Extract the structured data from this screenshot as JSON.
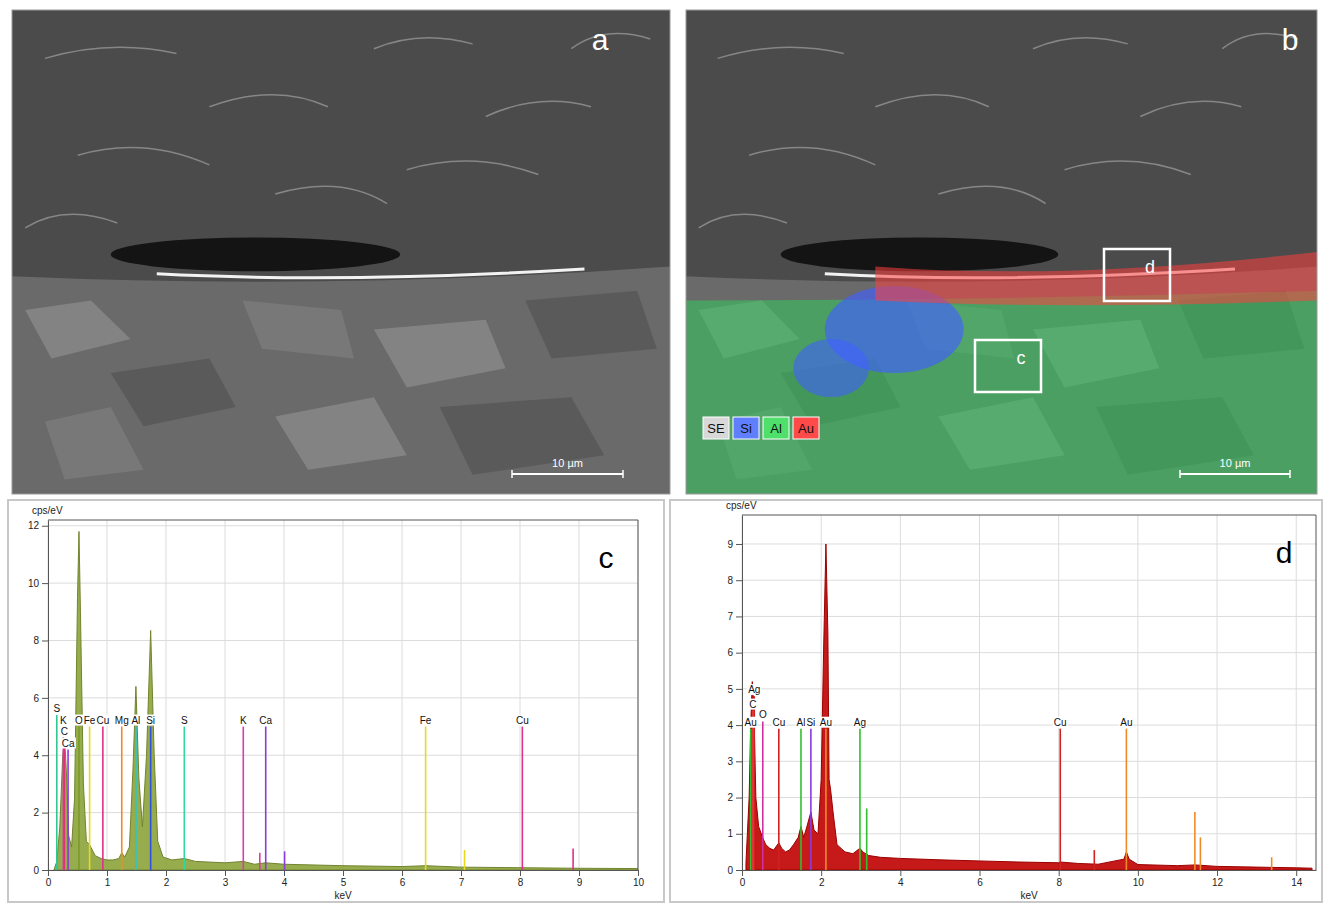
{
  "images": [
    {
      "panel_label": "a",
      "scale_bar": "10 µm"
    },
    {
      "panel_label": "b",
      "scale_bar": "10 µm",
      "map_channels": [
        "SE",
        "Si",
        "Al",
        "Au"
      ],
      "regions": [
        "d",
        "c"
      ]
    }
  ],
  "chart_data": [
    {
      "type": "area",
      "panel_label": "c",
      "x_label": "keV",
      "y_label": "cps/eV",
      "x": [
        0.1,
        0.15,
        0.2,
        0.25,
        0.28,
        0.31,
        0.35,
        0.4,
        0.45,
        0.5,
        0.525,
        0.55,
        0.6,
        0.65,
        0.7,
        0.75,
        0.8,
        0.9,
        1.0,
        1.1,
        1.2,
        1.25,
        1.3,
        1.38,
        1.44,
        1.49,
        1.54,
        1.6,
        1.67,
        1.74,
        1.8,
        1.86,
        1.95,
        2.1,
        2.31,
        2.5,
        3.0,
        3.31,
        3.5,
        3.69,
        4.0,
        5.0,
        6.0,
        6.4,
        7.0,
        8.0,
        9.0,
        10.0
      ],
      "values": [
        0,
        0.3,
        1.5,
        4.0,
        4.6,
        3.5,
        1.2,
        0.8,
        2.5,
        9.5,
        11.8,
        9.0,
        3.0,
        1.0,
        0.9,
        0.7,
        0.5,
        0.4,
        0.35,
        0.35,
        0.4,
        0.6,
        0.45,
        0.8,
        3.5,
        6.4,
        3.2,
        1.5,
        4.0,
        8.35,
        4.0,
        1.0,
        0.45,
        0.35,
        0.4,
        0.3,
        0.25,
        0.3,
        0.2,
        0.25,
        0.2,
        0.15,
        0.12,
        0.15,
        0.1,
        0.08,
        0.06,
        0.05
      ],
      "color": "#8ca33a",
      "xlim": [
        0,
        10
      ],
      "xticks": [
        0,
        1,
        2,
        3,
        4,
        5,
        6,
        7,
        8,
        9,
        10
      ],
      "ylim": [
        0,
        12.2
      ],
      "yticks": [
        0,
        2,
        4,
        6,
        8,
        10,
        12
      ],
      "grid": true,
      "lines": [
        {
          "label": "S",
          "x": 0.149,
          "height": 5.4,
          "color": "#30c890"
        },
        {
          "label": "K",
          "x": 0.26,
          "height": 5.0,
          "color": "#d63fa8"
        },
        {
          "label": "C",
          "x": 0.277,
          "height": 4.6,
          "color": "#e0307a"
        },
        {
          "label": "Ca",
          "x": 0.34,
          "height": 4.2,
          "color": "#8a3ae0"
        },
        {
          "label": "O",
          "x": 0.525,
          "height": 5.0,
          "color": "#7a9a2a"
        },
        {
          "label": "Fe",
          "x": 0.705,
          "height": 5.0,
          "color": "#e8d820"
        },
        {
          "label": "Cu",
          "x": 0.93,
          "height": 5.0,
          "color": "#e0308a"
        },
        {
          "label": "Mg",
          "x": 1.25,
          "height": 5.0,
          "color": "#f08a24"
        },
        {
          "label": "Al",
          "x": 1.49,
          "height": 5.0,
          "color": "#20c8d8"
        },
        {
          "label": "Si",
          "x": 1.74,
          "height": 5.0,
          "color": "#3050e0"
        },
        {
          "label": "S",
          "x": 2.31,
          "height": 5.0,
          "color": "#30d8a0"
        },
        {
          "label": "K",
          "x": 3.31,
          "height": 5.0,
          "color": "#d63fa8"
        },
        {
          "label": "Ca",
          "x": 3.69,
          "height": 5.0,
          "color": "#8a3ae0"
        },
        {
          "label": "Fe",
          "x": 6.4,
          "height": 5.0,
          "color": "#e8d820"
        },
        {
          "label": "Cu",
          "x": 8.04,
          "height": 5.0,
          "color": "#e0308a"
        },
        {
          "label": null,
          "x": 3.59,
          "height": 0.6,
          "color": "#d63fa8"
        },
        {
          "label": null,
          "x": 4.01,
          "height": 0.65,
          "color": "#8a3ae0"
        },
        {
          "label": null,
          "x": 7.06,
          "height": 0.7,
          "color": "#e8d820"
        },
        {
          "label": null,
          "x": 8.9,
          "height": 0.75,
          "color": "#e0308a"
        }
      ]
    },
    {
      "type": "area",
      "panel_label": "d",
      "x_label": "keV",
      "y_label": "cps/eV",
      "x": [
        0.1,
        0.18,
        0.22,
        0.26,
        0.3,
        0.35,
        0.42,
        0.52,
        0.6,
        0.7,
        0.8,
        0.93,
        1.0,
        1.1,
        1.2,
        1.3,
        1.42,
        1.49,
        1.56,
        1.64,
        1.74,
        1.82,
        1.92,
        2.0,
        2.06,
        2.12,
        2.17,
        2.2,
        2.24,
        2.3,
        2.4,
        2.6,
        2.8,
        2.98,
        3.05,
        3.2,
        3.5,
        4,
        5,
        6,
        7,
        8,
        8.04,
        8.5,
        9,
        9.65,
        9.71,
        9.78,
        10,
        11,
        11.44,
        12,
        13,
        14,
        14.4
      ],
      "values": [
        0.2,
        2.0,
        4.0,
        5.2,
        4.5,
        2.0,
        1.2,
        0.9,
        0.7,
        0.6,
        0.55,
        0.75,
        0.6,
        0.5,
        0.55,
        0.7,
        0.9,
        1.2,
        0.9,
        1.2,
        1.6,
        1.1,
        1.0,
        2.5,
        6.0,
        9.0,
        6.5,
        2.5,
        2.2,
        1.6,
        0.7,
        0.5,
        0.45,
        0.6,
        0.5,
        0.4,
        0.35,
        0.32,
        0.28,
        0.25,
        0.22,
        0.2,
        0.22,
        0.18,
        0.16,
        0.3,
        0.5,
        0.3,
        0.15,
        0.12,
        0.14,
        0.1,
        0.08,
        0.06,
        0.05
      ],
      "color": "#c00000",
      "xlim": [
        0,
        14.5
      ],
      "xticks": [
        0,
        2,
        4,
        6,
        8,
        10,
        12,
        14
      ],
      "ylim": [
        0,
        9.8
      ],
      "yticks": [
        0,
        1,
        2,
        3,
        4,
        5,
        6,
        7,
        8,
        9
      ],
      "grid": true,
      "lines": [
        {
          "label": "Ag",
          "x": 0.31,
          "height": 4.8,
          "color": "#d02020"
        },
        {
          "label": "C",
          "x": 0.277,
          "height": 4.4,
          "color": "#e04040"
        },
        {
          "label": "Au",
          "x": 0.22,
          "height": 3.9,
          "color": "#30c030"
        },
        {
          "label": "O",
          "x": 0.525,
          "height": 4.1,
          "color": "#d030a0"
        },
        {
          "label": "Cu",
          "x": 0.93,
          "height": 3.9,
          "color": "#d02020"
        },
        {
          "label": "Al",
          "x": 1.49,
          "height": 3.9,
          "color": "#30c030"
        },
        {
          "label": "Si",
          "x": 1.74,
          "height": 3.9,
          "color": "#8a3ae0"
        },
        {
          "label": "Au",
          "x": 2.12,
          "height": 3.9,
          "color": "#f08a24"
        },
        {
          "label": "Ag",
          "x": 2.98,
          "height": 3.9,
          "color": "#30c030"
        },
        {
          "label": "Cu",
          "x": 8.04,
          "height": 3.9,
          "color": "#d02020"
        },
        {
          "label": "Au",
          "x": 9.71,
          "height": 3.9,
          "color": "#f08a24"
        },
        {
          "label": null,
          "x": 3.15,
          "height": 1.7,
          "color": "#30c030"
        },
        {
          "label": null,
          "x": 8.9,
          "height": 0.55,
          "color": "#d02020"
        },
        {
          "label": null,
          "x": 11.44,
          "height": 1.6,
          "color": "#f08a24"
        },
        {
          "label": null,
          "x": 11.58,
          "height": 0.9,
          "color": "#f08a24"
        },
        {
          "label": null,
          "x": 13.38,
          "height": 0.35,
          "color": "#f08a24"
        }
      ]
    }
  ]
}
